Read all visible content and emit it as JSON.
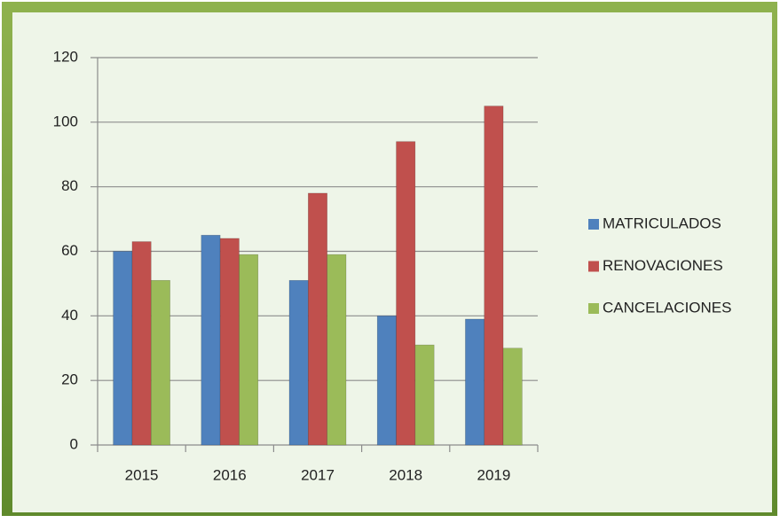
{
  "chart_data": {
    "type": "bar",
    "categories": [
      "2015",
      "2016",
      "2017",
      "2018",
      "2019"
    ],
    "series": [
      {
        "name": "MATRICULADOS",
        "color": "#4f81bd",
        "values": [
          60,
          65,
          51,
          40,
          39
        ]
      },
      {
        "name": "RENOVACIONES",
        "color": "#c0504d",
        "values": [
          63,
          64,
          78,
          94,
          105
        ]
      },
      {
        "name": "CANCELACIONES",
        "color": "#9bbb59",
        "values": [
          51,
          59,
          59,
          31,
          30
        ]
      }
    ],
    "ylim": [
      0,
      120
    ],
    "yticks": [
      0,
      20,
      40,
      60,
      80,
      100,
      120
    ],
    "grid": true,
    "legend": "right"
  }
}
